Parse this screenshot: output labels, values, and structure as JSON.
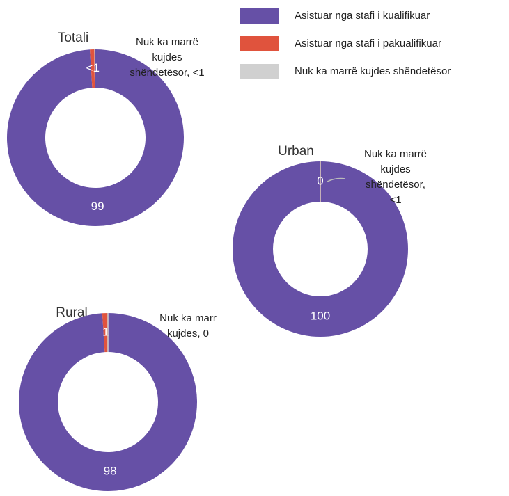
{
  "chart_data": [
    {
      "type": "donut",
      "title": "Totali",
      "categories": [
        "Asistuar nga stafi i kualifikuar",
        "Asistuar nga stafi i pakualifikuar",
        "Nuk ka marrë kujdes shëndetësor"
      ],
      "colors": [
        "#6650a6",
        "#e0533d",
        "#d0d0d0"
      ],
      "values": [
        99,
        0.8,
        0.2
      ],
      "value_labels": [
        "99",
        "<1",
        null
      ],
      "annotation": [
        "Nuk ka marrë",
        "kujdes",
        "shëndetësor, <1"
      ]
    },
    {
      "type": "donut",
      "title": "Urban",
      "categories": [
        "Asistuar nga stafi i kualifikuar",
        "Asistuar nga stafi i pakualifikuar",
        "Nuk ka marrë kujdes shëndetësor"
      ],
      "colors": [
        "#6650a6",
        "#e0533d",
        "#d0d0d0"
      ],
      "values": [
        100,
        0,
        0
      ],
      "value_labels": [
        "100",
        null,
        "0"
      ],
      "annotation": [
        "Nuk ka marrë",
        "kujdes",
        "shëndetësor,",
        "<1"
      ]
    },
    {
      "type": "donut",
      "title": "Rural",
      "categories": [
        "Asistuar nga stafi i kualifikuar",
        "Asistuar nga stafi i pakualifikuar",
        "Nuk ka marrë kujdes shëndetësor"
      ],
      "colors": [
        "#6650a6",
        "#e0533d",
        "#d0d0d0"
      ],
      "values": [
        98,
        1,
        0
      ],
      "value_labels": [
        "98",
        "1",
        null
      ],
      "annotation": [
        "Nuk ka marr",
        "kujdes, 0"
      ]
    }
  ]
}
